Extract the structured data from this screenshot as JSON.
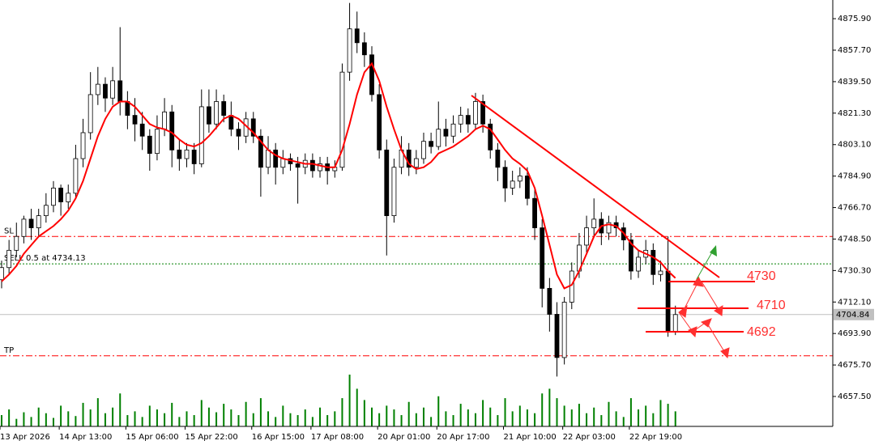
{
  "chart_data": {
    "type": "candlestick",
    "categories": [
      "13 Apr 2026",
      null,
      null,
      null,
      null,
      null,
      null,
      null,
      "14 Apr 13:00",
      null,
      null,
      null,
      null,
      null,
      null,
      null,
      null,
      "15 Apr 06:00",
      null,
      null,
      null,
      null,
      null,
      null,
      null,
      "15 Apr 22:00",
      null,
      null,
      null,
      null,
      null,
      null,
      null,
      null,
      "16 Apr 15:00",
      null,
      null,
      null,
      null,
      null,
      null,
      null,
      "17 Apr 08:00",
      null,
      null,
      null,
      null,
      null,
      null,
      null,
      null,
      "20 Apr 01:00",
      null,
      null,
      null,
      null,
      null,
      null,
      null,
      "20 Apr 17:00",
      null,
      null,
      null,
      null,
      null,
      null,
      null,
      null,
      "21 Apr 10:00",
      null,
      null,
      null,
      null,
      null,
      null,
      null,
      "22 Apr 03:00",
      null,
      null,
      null,
      null,
      null,
      null,
      null,
      null,
      "22 Apr 19:00",
      null,
      null,
      null,
      null,
      null,
      null
    ],
    "open": [
      4725,
      4732,
      4742,
      4750,
      4760,
      4755,
      4762,
      4768,
      4778,
      4770,
      4775,
      4795,
      4810,
      4832,
      4838,
      4830,
      4840,
      4828,
      4820,
      4815,
      4808,
      4798,
      4812,
      4822,
      4800,
      4795,
      4800,
      4792,
      4825,
      4815,
      4828,
      4820,
      4812,
      4808,
      4818,
      4808,
      4790,
      4800,
      4790,
      4795,
      4792,
      4790,
      4794,
      4788,
      4792,
      4788,
      4790,
      4845,
      4870,
      4862,
      4855,
      4832,
      4800,
      4762,
      4790,
      4800,
      4790,
      4795,
      4805,
      4802,
      4812,
      4808,
      4815,
      4820,
      4815,
      4828,
      4815,
      4800,
      4790,
      4778,
      4782,
      4785,
      4772,
      4755,
      4720,
      4705,
      4680,
      4712,
      4730,
      4745,
      4755,
      4760,
      4752,
      4758,
      4755,
      4748,
      4730,
      4738,
      4742,
      4728,
      4730,
      4695
    ],
    "high": [
      4736,
      4748,
      4758,
      4762,
      4766,
      4766,
      4775,
      4782,
      4780,
      4780,
      4803,
      4818,
      4845,
      4848,
      4842,
      4848,
      4871,
      4834,
      4830,
      4822,
      4812,
      4820,
      4830,
      4826,
      4806,
      4804,
      4804,
      4835,
      4835,
      4835,
      4832,
      4828,
      4816,
      4822,
      4822,
      4812,
      4808,
      4804,
      4800,
      4798,
      4796,
      4798,
      4798,
      4796,
      4796,
      4794,
      4850,
      4885,
      4880,
      4868,
      4860,
      4838,
      4806,
      4795,
      4808,
      4804,
      4800,
      4810,
      4810,
      4828,
      4818,
      4820,
      4825,
      4824,
      4833,
      4832,
      4818,
      4804,
      4794,
      4788,
      4790,
      4790,
      4778,
      4760,
      4726,
      4712,
      4715,
      4735,
      4752,
      4762,
      4772,
      4764,
      4762,
      4762,
      4758,
      4752,
      4742,
      4748,
      4746,
      4736,
      4750,
      4710
    ],
    "low": [
      4720,
      4728,
      4738,
      4746,
      4748,
      4750,
      4758,
      4764,
      4762,
      4766,
      4772,
      4790,
      4806,
      4826,
      4822,
      4826,
      4820,
      4812,
      4805,
      4800,
      4788,
      4794,
      4808,
      4790,
      4788,
      4790,
      4786,
      4790,
      4810,
      4812,
      4816,
      4808,
      4800,
      4804,
      4804,
      4773,
      4786,
      4780,
      4786,
      4788,
      4769,
      4786,
      4784,
      4784,
      4780,
      4784,
      4788,
      4840,
      4856,
      4848,
      4828,
      4795,
      4739,
      4758,
      4786,
      4785,
      4786,
      4792,
      4798,
      4800,
      4802,
      4804,
      4810,
      4810,
      4812,
      4810,
      4795,
      4782,
      4770,
      4774,
      4778,
      4768,
      4748,
      4709,
      4695,
      4669,
      4676,
      4708,
      4726,
      4740,
      4750,
      4745,
      4748,
      4750,
      4742,
      4725,
      4726,
      4734,
      4722,
      4724,
      4692,
      4693
    ],
    "close": [
      4732,
      4742,
      4750,
      4760,
      4755,
      4762,
      4768,
      4778,
      4770,
      4775,
      4795,
      4810,
      4832,
      4838,
      4830,
      4840,
      4828,
      4820,
      4815,
      4808,
      4798,
      4812,
      4822,
      4800,
      4795,
      4800,
      4792,
      4825,
      4815,
      4828,
      4820,
      4812,
      4808,
      4818,
      4808,
      4790,
      4800,
      4790,
      4795,
      4792,
      4790,
      4794,
      4788,
      4792,
      4788,
      4790,
      4845,
      4870,
      4862,
      4855,
      4832,
      4800,
      4762,
      4790,
      4800,
      4790,
      4795,
      4805,
      4802,
      4812,
      4808,
      4815,
      4820,
      4815,
      4828,
      4815,
      4800,
      4790,
      4778,
      4782,
      4785,
      4772,
      4755,
      4720,
      4705,
      4680,
      4712,
      4730,
      4745,
      4755,
      4760,
      4752,
      4758,
      4755,
      4748,
      4730,
      4738,
      4742,
      4728,
      4730,
      4695,
      4704.84
    ],
    "ma": {
      "color": "#ff0000",
      "values": [
        4724,
        4728,
        4733,
        4740,
        4745,
        4750,
        4753,
        4756,
        4760,
        4765,
        4772,
        4782,
        4795,
        4808,
        4818,
        4825,
        4828,
        4828,
        4825,
        4820,
        4815,
        4813,
        4812,
        4810,
        4806,
        4803,
        4802,
        4804,
        4808,
        4813,
        4818,
        4820,
        4818,
        4814,
        4810,
        4805,
        4800,
        4797,
        4795,
        4794,
        4793,
        4792,
        4792,
        4791,
        4790,
        4790,
        4800,
        4815,
        4832,
        4845,
        4850,
        4840,
        4825,
        4812,
        4800,
        4792,
        4789,
        4790,
        4793,
        4798,
        4800,
        4802,
        4805,
        4808,
        4812,
        4814,
        4812,
        4806,
        4800,
        4795,
        4792,
        4788,
        4778,
        4762,
        4745,
        4728,
        4720,
        4722,
        4730,
        4740,
        4750,
        4756,
        4757,
        4756,
        4752,
        4746,
        4742,
        4740,
        4738,
        4735,
        4730,
        4726
      ]
    },
    "volume": {
      "color": "#008000",
      "values": [
        12,
        18,
        8,
        15,
        10,
        20,
        14,
        9,
        22,
        16,
        11,
        25,
        18,
        30,
        14,
        20,
        35,
        12,
        16,
        10,
        22,
        18,
        14,
        25,
        10,
        16,
        12,
        28,
        20,
        15,
        24,
        18,
        12,
        26,
        14,
        30,
        16,
        10,
        22,
        14,
        12,
        18,
        10,
        20,
        12,
        16,
        30,
        55,
        40,
        28,
        20,
        14,
        22,
        18,
        12,
        26,
        14,
        20,
        10,
        32,
        16,
        12,
        24,
        18,
        14,
        28,
        20,
        12,
        30,
        16,
        22,
        18,
        14,
        35,
        40,
        30,
        22,
        18,
        24,
        14,
        20,
        12,
        26,
        16,
        10,
        30,
        18,
        22,
        14,
        28,
        24,
        16
      ]
    },
    "ylim": [
      4640.2,
      4886.7
    ],
    "yticks": [
      {
        "value": 4875.9,
        "label": "4875.90"
      },
      {
        "value": 4857.7,
        "label": "4857.70"
      },
      {
        "value": 4839.5,
        "label": "4839.50"
      },
      {
        "value": 4821.3,
        "label": "4821.30"
      },
      {
        "value": 4803.1,
        "label": "4803.10"
      },
      {
        "value": 4784.9,
        "label": "4784.90"
      },
      {
        "value": 4766.7,
        "label": "4766.70"
      },
      {
        "value": 4748.5,
        "label": "4748.50"
      },
      {
        "value": 4730.3,
        "label": "4730.30"
      },
      {
        "value": 4712.1,
        "label": "4712.10"
      },
      {
        "value": 4693.9,
        "label": "4693.90"
      },
      {
        "value": 4675.7,
        "label": "4675.70"
      },
      {
        "value": 4657.5,
        "label": "4657.50"
      }
    ],
    "levels": [
      {
        "label": "SL",
        "value": 4750,
        "color": "#ff0000",
        "style": "dashdot"
      },
      {
        "label": "SELL 0.5 at 4734.13",
        "value": 4734.13,
        "color": "#008000",
        "style": "dotted"
      },
      {
        "label": "TP",
        "value": 4681,
        "color": "#ff0000",
        "style": "dashdot"
      }
    ],
    "last_price": 4704.84,
    "annotations": [
      "4730",
      "4710",
      "4692"
    ]
  }
}
